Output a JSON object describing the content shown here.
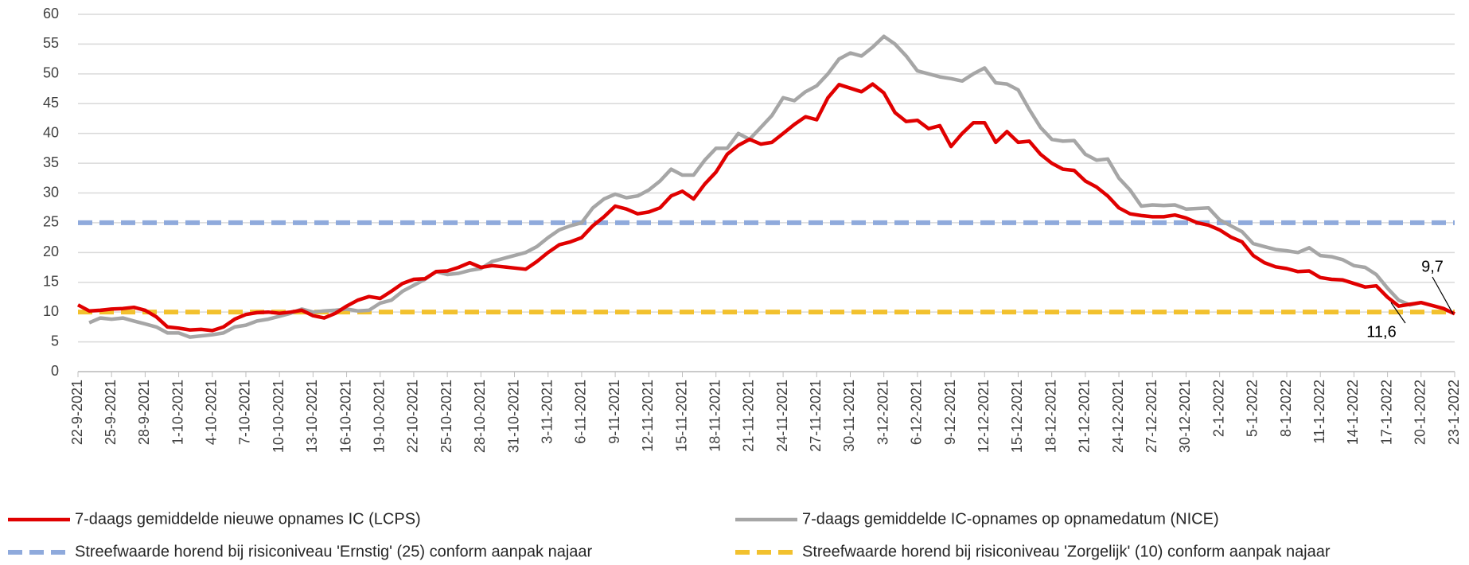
{
  "chart_data": {
    "type": "line",
    "categories": [
      "22-9-2021",
      null,
      null,
      "25-9-2021",
      null,
      null,
      "28-9-2021",
      null,
      null,
      "1-10-2021",
      null,
      null,
      "4-10-2021",
      null,
      null,
      "7-10-2021",
      null,
      null,
      "10-10-2021",
      null,
      null,
      "13-10-2021",
      null,
      null,
      "16-10-2021",
      null,
      null,
      "19-10-2021",
      null,
      null,
      "22-10-2021",
      null,
      null,
      "25-10-2021",
      null,
      null,
      "28-10-2021",
      null,
      null,
      "31-10-2021",
      null,
      null,
      "3-11-2021",
      null,
      null,
      "6-11-2021",
      null,
      null,
      "9-11-2021",
      null,
      null,
      "12-11-2021",
      null,
      null,
      "15-11-2021",
      null,
      null,
      "18-11-2021",
      null,
      null,
      "21-11-2021",
      null,
      null,
      "24-11-2021",
      null,
      null,
      "27-11-2021",
      null,
      null,
      "30-11-2021",
      null,
      null,
      "3-12-2021",
      null,
      null,
      "6-12-2021",
      null,
      null,
      "9-12-2021",
      null,
      null,
      "12-12-2021",
      null,
      null,
      "15-12-2021",
      null,
      null,
      "18-12-2021",
      null,
      null,
      "21-12-2021",
      null,
      null,
      "24-12-2021",
      null,
      null,
      "27-12-2021",
      null,
      null,
      "30-12-2021",
      null,
      null,
      "2-1-2022",
      null,
      null,
      "5-1-2022",
      null,
      null,
      "8-1-2022",
      null,
      null,
      "11-1-2022",
      null,
      null,
      "14-1-2022",
      null,
      null,
      "17-1-2022",
      null,
      null,
      "20-1-2022",
      null,
      null,
      "23-1-2022"
    ],
    "series": [
      {
        "name": "7-daags gemiddelde nieuwe opnames IC (LCPS)",
        "color": "#e00000",
        "values": [
          11.2,
          10.2,
          10.3,
          10.5,
          10.6,
          10.8,
          10.3,
          9.2,
          7.5,
          7.3,
          7.0,
          7.1,
          6.9,
          7.5,
          8.8,
          9.6,
          9.9,
          10.0,
          9.8,
          10.0,
          10.3,
          9.4,
          9.0,
          9.8,
          11.0,
          12.0,
          12.6,
          12.3,
          13.5,
          14.8,
          15.5,
          15.6,
          16.8,
          16.9,
          17.5,
          18.3,
          17.5,
          17.8,
          17.6,
          17.4,
          17.2,
          18.5,
          20.0,
          21.3,
          21.8,
          22.5,
          24.5,
          26.0,
          27.8,
          27.3,
          26.5,
          26.8,
          27.5,
          29.5,
          30.3,
          29.0,
          31.5,
          33.5,
          36.5,
          38.0,
          39.0,
          38.2,
          38.5,
          40.0,
          41.5,
          42.8,
          42.3,
          46.0,
          48.2,
          47.6,
          47.0,
          48.3,
          46.8,
          43.5,
          42.0,
          42.2,
          40.8,
          41.3,
          37.8,
          40.0,
          41.8,
          41.8,
          38.5,
          40.3,
          38.5,
          38.7,
          36.5,
          35.0,
          34.0,
          33.8,
          32.0,
          31.0,
          29.5,
          27.5,
          26.5,
          26.2,
          26.0,
          26.0,
          26.3,
          25.8,
          25.0,
          24.6,
          23.8,
          22.6,
          21.8,
          19.5,
          18.3,
          17.6,
          17.3,
          16.8,
          16.9,
          15.8,
          15.5,
          15.4,
          14.8,
          14.2,
          14.4,
          12.5,
          11.0,
          11.3,
          11.6,
          11.1,
          10.6,
          9.7
        ]
      },
      {
        "name": "7-daags gemiddelde IC-opnames op opnamedatum (NICE)",
        "color": "#a6a6a6",
        "values": [
          null,
          8.2,
          9.0,
          8.8,
          9.0,
          8.5,
          8.0,
          7.5,
          6.5,
          6.5,
          5.8,
          6.0,
          6.2,
          6.5,
          7.5,
          7.8,
          8.5,
          8.8,
          9.3,
          9.8,
          10.5,
          10.0,
          10.2,
          10.3,
          10.5,
          10.2,
          10.3,
          11.5,
          12.0,
          13.5,
          14.5,
          15.5,
          16.8,
          16.3,
          16.5,
          17.0,
          17.3,
          18.5,
          19.0,
          19.5,
          20.0,
          21.0,
          22.5,
          23.8,
          24.5,
          25.0,
          27.5,
          29.0,
          29.8,
          29.2,
          29.5,
          30.5,
          32.0,
          34.0,
          33.0,
          33.0,
          35.5,
          37.5,
          37.5,
          40.0,
          39.0,
          41.0,
          43.0,
          46.0,
          45.5,
          47.0,
          48.0,
          50.0,
          52.5,
          53.5,
          53.0,
          54.5,
          56.3,
          55.0,
          53.0,
          50.5,
          50.0,
          49.5,
          49.2,
          48.8,
          50.0,
          51.0,
          48.5,
          48.3,
          47.3,
          44.0,
          41.0,
          39.0,
          38.7,
          38.8,
          36.5,
          35.5,
          35.7,
          32.5,
          30.5,
          27.8,
          28.0,
          27.9,
          28.0,
          27.3,
          27.4,
          27.5,
          25.5,
          24.5,
          23.5,
          21.5,
          21.0,
          20.5,
          20.3,
          20.0,
          20.8,
          19.5,
          19.3,
          18.8,
          17.8,
          17.5,
          16.3,
          14.0,
          12.0,
          11.2,
          11.6,
          null,
          null,
          null
        ]
      },
      {
        "name": "Streefwaarde horend bij risiconiveau 'Ernstig' (25) conform aanpak najaar",
        "color": "#8faadc",
        "value": 25,
        "dashed": true
      },
      {
        "name": "Streefwaarde horend bij risiconiveau 'Zorgelijk' (10) conform aanpak najaar",
        "color": "#f2c12e",
        "value": 10,
        "dashed": true
      }
    ],
    "annotations": [
      {
        "label": "9,7",
        "value": 9.7
      },
      {
        "label": "11,6",
        "value": 11.6
      }
    ],
    "ylim": [
      0,
      60
    ],
    "yticks": [
      0,
      5,
      10,
      15,
      20,
      25,
      30,
      35,
      40,
      45,
      50,
      55,
      60
    ],
    "grid": true
  }
}
